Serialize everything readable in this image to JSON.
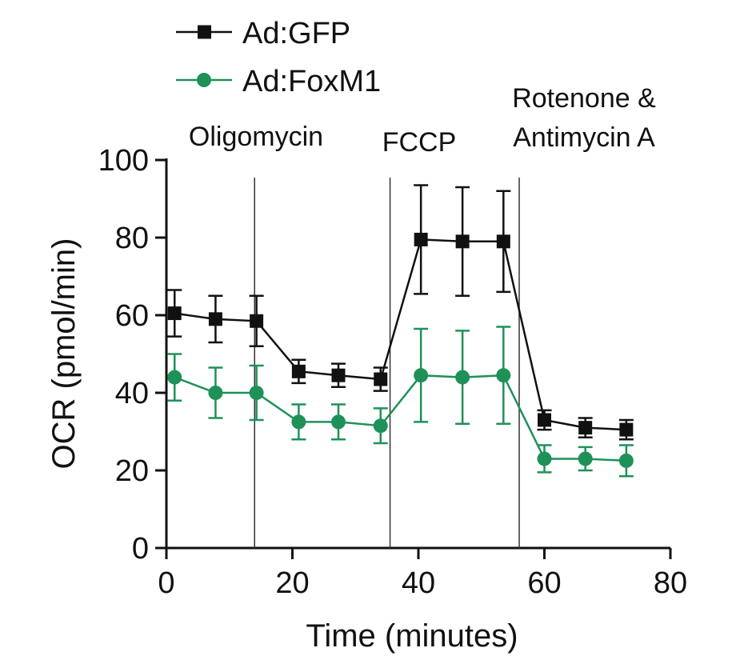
{
  "chart_data": {
    "type": "line",
    "xlabel": "Time (minutes)",
    "ylabel": "OCR (pmol/min)",
    "xlim": [
      0,
      80
    ],
    "ylim": [
      0,
      100
    ],
    "xticks": [
      0,
      20,
      40,
      60,
      80
    ],
    "yticks": [
      0,
      20,
      40,
      60,
      80,
      100
    ],
    "grid": false,
    "legend_position": "top-left",
    "injections": [
      {
        "label": "Oligomycin",
        "x": 14
      },
      {
        "label": "FCCP",
        "x": 35.5
      },
      {
        "label": "Rotenone & Antimycin A",
        "label_lines": [
          "Rotenone &",
          "Antimycin A"
        ],
        "x": 56
      }
    ],
    "series": [
      {
        "name": "Ad:GFP",
        "marker": "square",
        "color": "#111111",
        "points": [
          {
            "x": 1.3,
            "y": 60.5,
            "err": 6
          },
          {
            "x": 7.8,
            "y": 59,
            "err": 6
          },
          {
            "x": 14.3,
            "y": 58.5,
            "err": 6.5
          },
          {
            "x": 21,
            "y": 45.5,
            "err": 3
          },
          {
            "x": 27.3,
            "y": 44.5,
            "err": 3
          },
          {
            "x": 34,
            "y": 43.5,
            "err": 3
          },
          {
            "x": 40.4,
            "y": 79.5,
            "err": 14
          },
          {
            "x": 47,
            "y": 79,
            "err": 14
          },
          {
            "x": 53.5,
            "y": 79,
            "err": 13
          },
          {
            "x": 60,
            "y": 33,
            "err": 2.5
          },
          {
            "x": 66.5,
            "y": 31,
            "err": 2.5
          },
          {
            "x": 73,
            "y": 30.5,
            "err": 2.5
          }
        ]
      },
      {
        "name": "Ad:FoxM1",
        "marker": "circle",
        "color": "#1e9159",
        "points": [
          {
            "x": 1.3,
            "y": 44,
            "err": 6
          },
          {
            "x": 7.8,
            "y": 40,
            "err": 6.5
          },
          {
            "x": 14.3,
            "y": 40,
            "err": 7
          },
          {
            "x": 21,
            "y": 32.5,
            "err": 4.5
          },
          {
            "x": 27.3,
            "y": 32.5,
            "err": 4.5
          },
          {
            "x": 34,
            "y": 31.5,
            "err": 4.5
          },
          {
            "x": 40.4,
            "y": 44.5,
            "err": 12
          },
          {
            "x": 47,
            "y": 44,
            "err": 12
          },
          {
            "x": 53.5,
            "y": 44.5,
            "err": 12.5
          },
          {
            "x": 60,
            "y": 23,
            "err": 3.5
          },
          {
            "x": 66.5,
            "y": 23,
            "err": 3
          },
          {
            "x": 73,
            "y": 22.5,
            "err": 4
          }
        ]
      }
    ]
  }
}
